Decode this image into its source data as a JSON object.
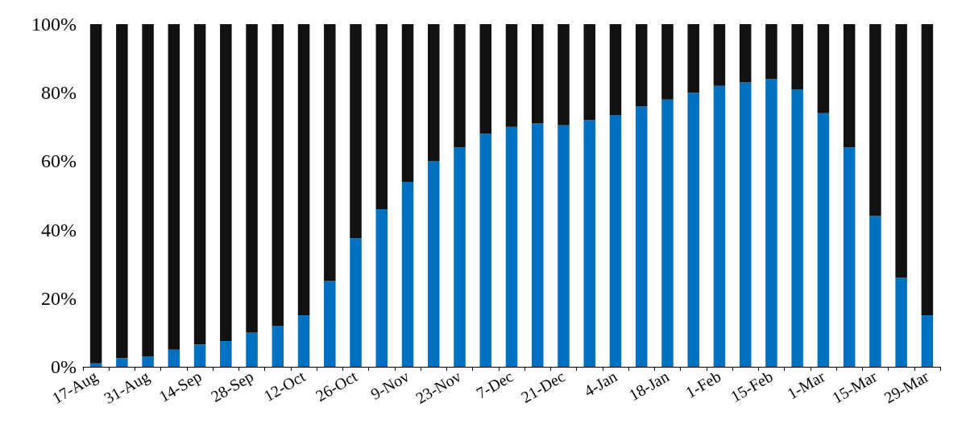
{
  "chart_data": {
    "type": "bar",
    "stacked": true,
    "categories": [
      "17-Aug",
      null,
      "31-Aug",
      null,
      "14-Sep",
      null,
      "28-Sep",
      null,
      "12-Oct",
      null,
      "26-Oct",
      null,
      "9-Nov",
      null,
      "23-Nov",
      null,
      "7-Dec",
      null,
      "21-Dec",
      null,
      "4-Jan",
      null,
      "18-Jan",
      null,
      "1-Feb",
      null,
      "15-Feb",
      null,
      "1-Mar",
      null,
      "15-Mar",
      null,
      "29-Mar"
    ],
    "series": [
      {
        "color": "#0070c0",
        "values": [
          1,
          2.5,
          3,
          5,
          6.5,
          7.5,
          10,
          12,
          15,
          25,
          37.5,
          46,
          54,
          60,
          64,
          68,
          70,
          71,
          70.5,
          72,
          73.5,
          76,
          78,
          80,
          82,
          83,
          84,
          81,
          74,
          64,
          44,
          26,
          15
        ]
      },
      {
        "color": "#111111",
        "values": [
          99,
          97.5,
          97,
          95,
          93.5,
          92.5,
          90,
          88,
          85,
          75,
          62.5,
          54,
          46,
          40,
          36,
          32,
          30,
          29,
          29.5,
          28,
          26.5,
          24,
          22,
          20,
          18,
          17,
          16,
          19,
          26,
          36,
          56,
          74,
          85
        ]
      }
    ],
    "ylim": [
      0,
      100
    ],
    "yticks": [
      {
        "value": 0,
        "label": "0%"
      },
      {
        "value": 20,
        "label": "20%"
      },
      {
        "value": 40,
        "label": "40%"
      },
      {
        "value": 60,
        "label": "60%"
      },
      {
        "value": 80,
        "label": "80%"
      },
      {
        "value": 100,
        "label": "100%"
      }
    ],
    "grid": false
  }
}
